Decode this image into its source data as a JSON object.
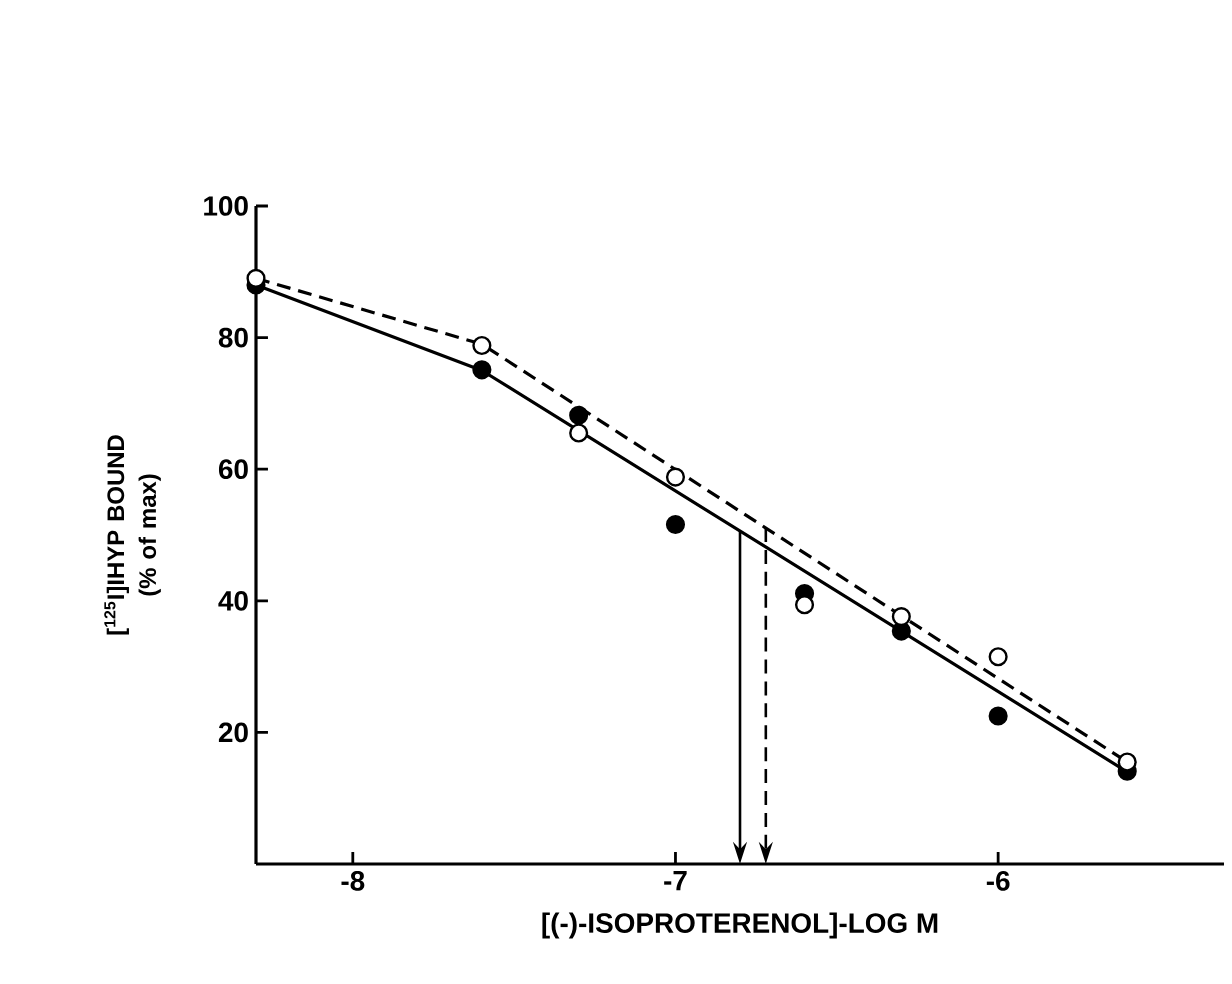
{
  "chart_data": {
    "type": "scatter",
    "xlabel": "[(-)-ISOPROTERENOL]-LOG M",
    "ylabel": "[$^{125}$I]IHYP BOUND (% of max)",
    "xlim": [
      -8.3,
      -5.3
    ],
    "ylim": [
      0,
      100
    ],
    "xticks": [
      -8,
      -7,
      -6
    ],
    "yticks": [
      20,
      40,
      60,
      80,
      100
    ],
    "grid": false,
    "series": [
      {
        "color": "#000000",
        "marker": "circle",
        "x": [
          -8.3,
          -7.6,
          -7.3,
          -7.0,
          -6.6,
          -6.3,
          -6.0,
          -5.6
        ],
        "values": [
          88,
          75.1,
          68.2,
          51.6,
          41.1,
          35.4,
          22.5,
          14.1
        ]
      },
      {
        "color": "#ffffff",
        "marker": "circle",
        "x": [
          -8.3,
          -7.6,
          -7.3,
          -7.0,
          -6.6,
          -6.3,
          -6.0,
          -5.6
        ],
        "values": [
          89,
          78.8,
          65.5,
          58.8,
          39.4,
          37.6,
          31.5,
          15.5
        ]
      },
      {
        "type": "line",
        "color": "#000000",
        "line_style": "solid",
        "marker": "none",
        "x": [
          -8.3,
          -7.6,
          -5.6
        ],
        "values": [
          88,
          75,
          14
        ]
      },
      {
        "type": "line",
        "color": "#000000",
        "line_style": "dashed",
        "marker": "none",
        "x": [
          -8.3,
          -7.6,
          -5.6
        ],
        "values": [
          89,
          79,
          15.5
        ]
      }
    ],
    "ref_lines": [
      {
        "axis": "x",
        "value": -6.8,
        "line_style": "solid",
        "color": "#000000"
      },
      {
        "axis": "x",
        "value": -6.72,
        "line_style": "dashed",
        "color": "#000000"
      }
    ]
  }
}
